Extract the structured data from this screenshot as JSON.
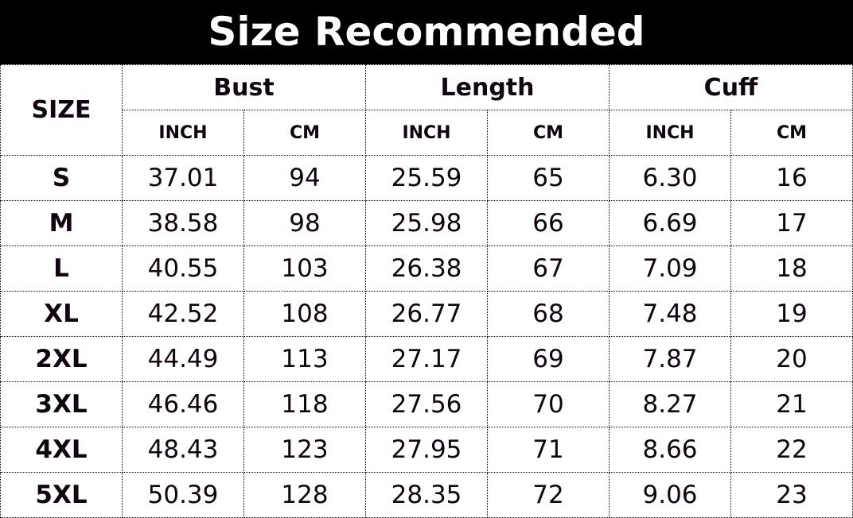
{
  "title": "Size Recommended",
  "header": {
    "size": "SIZE",
    "groups": [
      "Bust",
      "Length",
      "Cuff"
    ],
    "units": [
      "INCH",
      "CM",
      "INCH",
      "CM",
      "INCH",
      "CM"
    ]
  },
  "rows": [
    [
      "S",
      "37.01",
      "94",
      "25.59",
      "65",
      "6.30",
      "16"
    ],
    [
      "M",
      "38.58",
      "98",
      "25.98",
      "66",
      "6.69",
      "17"
    ],
    [
      "L",
      "40.55",
      "103",
      "26.38",
      "67",
      "7.09",
      "18"
    ],
    [
      "XL",
      "42.52",
      "108",
      "26.77",
      "68",
      "7.48",
      "19"
    ],
    [
      "2XL",
      "44.49",
      "113",
      "27.17",
      "69",
      "7.87",
      "20"
    ],
    [
      "3XL",
      "46.46",
      "118",
      "27.56",
      "70",
      "8.27",
      "21"
    ],
    [
      "4XL",
      "48.43",
      "123",
      "27.95",
      "71",
      "8.66",
      "22"
    ],
    [
      "5XL",
      "50.39",
      "128",
      "28.35",
      "72",
      "9.06",
      "23"
    ]
  ]
}
